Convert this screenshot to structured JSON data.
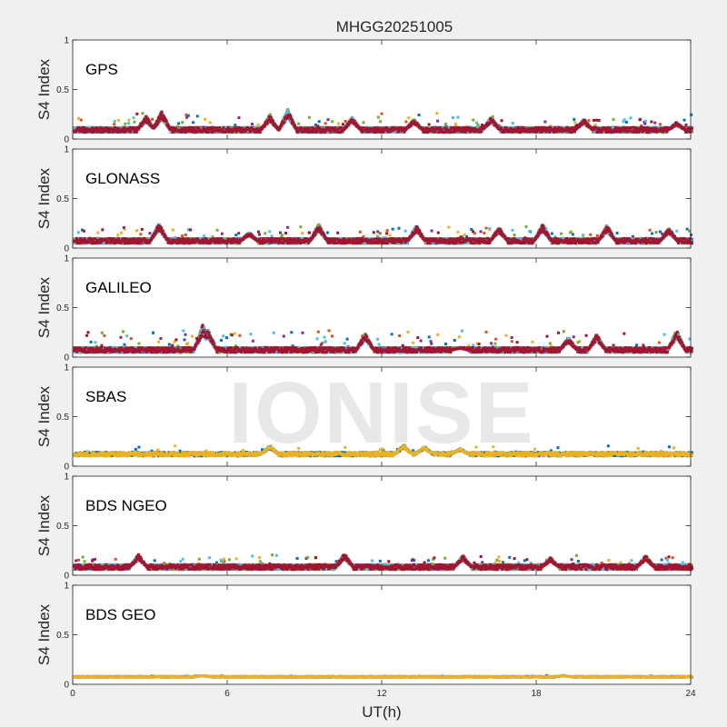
{
  "chart_data": {
    "type": "scatter",
    "title": "MHGG20251005",
    "xlabel": "UT(h)",
    "ylabel": "S4 Index",
    "xlim": [
      0,
      24
    ],
    "ylim": [
      0,
      1
    ],
    "xticks": [
      "0",
      "6",
      "12",
      "18",
      "24"
    ],
    "yticks": [
      "0",
      "0.5",
      "1"
    ],
    "watermark": "IONISE",
    "series_colors": [
      "#0072BD",
      "#D95319",
      "#EDB120",
      "#7E2F8E",
      "#77AC30",
      "#4DBEEE",
      "#A2142F"
    ],
    "panels": [
      {
        "name": "GPS",
        "baseline": 0.09,
        "spread": 0.05,
        "max_peak": 0.3,
        "peaks": [
          [
            3.4,
            0.28
          ],
          [
            2.8,
            0.23
          ],
          [
            8.3,
            0.3
          ],
          [
            7.6,
            0.24
          ],
          [
            10.8,
            0.22
          ],
          [
            13.2,
            0.2
          ],
          [
            16.2,
            0.22
          ],
          [
            19.8,
            0.2
          ],
          [
            23.4,
            0.17
          ]
        ]
      },
      {
        "name": "GLONASS",
        "baseline": 0.07,
        "spread": 0.05,
        "max_peak": 0.25,
        "peaks": [
          [
            3.3,
            0.25
          ],
          [
            6.8,
            0.16
          ],
          [
            9.5,
            0.24
          ],
          [
            13.3,
            0.23
          ],
          [
            16.5,
            0.21
          ],
          [
            18.2,
            0.24
          ],
          [
            20.7,
            0.23
          ],
          [
            23.1,
            0.2
          ]
        ]
      },
      {
        "name": "GALILEO",
        "baseline": 0.07,
        "spread": 0.05,
        "max_peak": 0.33,
        "peaks": [
          [
            5.0,
            0.33
          ],
          [
            5.2,
            0.28
          ],
          [
            11.3,
            0.24
          ],
          [
            15.0,
            0.1
          ],
          [
            19.2,
            0.2
          ],
          [
            20.3,
            0.23
          ],
          [
            23.4,
            0.27
          ]
        ]
      },
      {
        "name": "SBAS",
        "baseline": 0.12,
        "spread": 0.04,
        "max_peak": 0.23,
        "peaks": [
          [
            7.6,
            0.21
          ],
          [
            12.8,
            0.22
          ],
          [
            13.6,
            0.2
          ],
          [
            15.0,
            0.18
          ]
        ]
      },
      {
        "name": "BDS NGEO",
        "baseline": 0.08,
        "spread": 0.05,
        "max_peak": 0.23,
        "peaks": [
          [
            2.5,
            0.21
          ],
          [
            10.5,
            0.22
          ],
          [
            15.1,
            0.2
          ],
          [
            18.5,
            0.18
          ],
          [
            22.2,
            0.2
          ]
        ]
      },
      {
        "name": "BDS GEO",
        "baseline": 0.075,
        "spread": 0.01,
        "max_peak": 0.09,
        "peaks": [
          [
            5.0,
            0.09
          ],
          [
            19.0,
            0.09
          ]
        ]
      }
    ]
  }
}
